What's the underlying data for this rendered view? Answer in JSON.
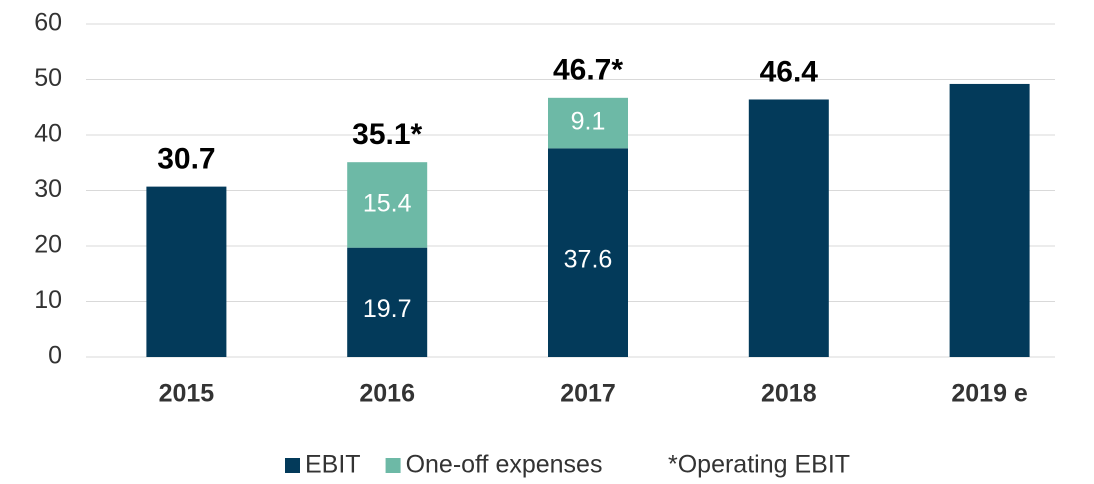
{
  "chart_data": {
    "type": "stacked_bar",
    "categories": [
      "2015",
      "2016",
      "2017",
      "2018",
      "2019 e"
    ],
    "series": [
      {
        "name": "EBIT",
        "color": "#033a5a",
        "values": [
          30.7,
          19.7,
          37.6,
          46.4,
          49.2
        ],
        "value_labels": [
          null,
          "19.7",
          "37.6",
          null,
          null
        ]
      },
      {
        "name": "One-off expenses",
        "color": "#6db9a6",
        "values": [
          null,
          15.4,
          9.1,
          null,
          null
        ],
        "value_labels": [
          null,
          "15.4",
          "9.1",
          null,
          null
        ]
      }
    ],
    "totals": [
      30.7,
      35.1,
      46.7,
      46.4,
      null
    ],
    "total_labels": [
      "30.7",
      "35.1*",
      "46.7*",
      "46.4",
      null
    ],
    "note": "*Operating EBIT",
    "ylim": [
      0,
      60
    ],
    "yticks": [
      0,
      10,
      20,
      30,
      40,
      50,
      60
    ],
    "grid": true,
    "legend": "bottom"
  }
}
